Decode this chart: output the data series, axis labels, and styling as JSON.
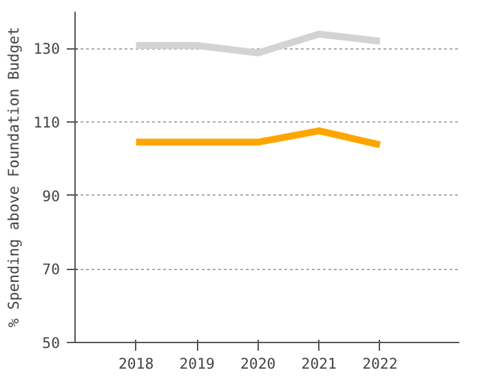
{
  "chart_data": {
    "type": "line",
    "ylabel": "% Spending above Foundation Budget",
    "x": [
      2018,
      2019,
      2020,
      2021,
      2022
    ],
    "series": [
      {
        "color": "#d3d3d3",
        "values": [
          130.8,
          130.8,
          128.8,
          133.9,
          132.0
        ]
      },
      {
        "color": "#ffa500",
        "values": [
          104.5,
          104.5,
          104.5,
          107.6,
          103.8
        ]
      }
    ],
    "xlim": [
      2017,
      2023.3
    ],
    "xticks": [
      2018,
      2019,
      2020,
      2021,
      2022
    ],
    "ylim": [
      50,
      140
    ],
    "yticks": [
      50,
      70,
      90,
      110,
      130
    ],
    "grid": "y",
    "marker": "none",
    "line_style": "solid"
  }
}
